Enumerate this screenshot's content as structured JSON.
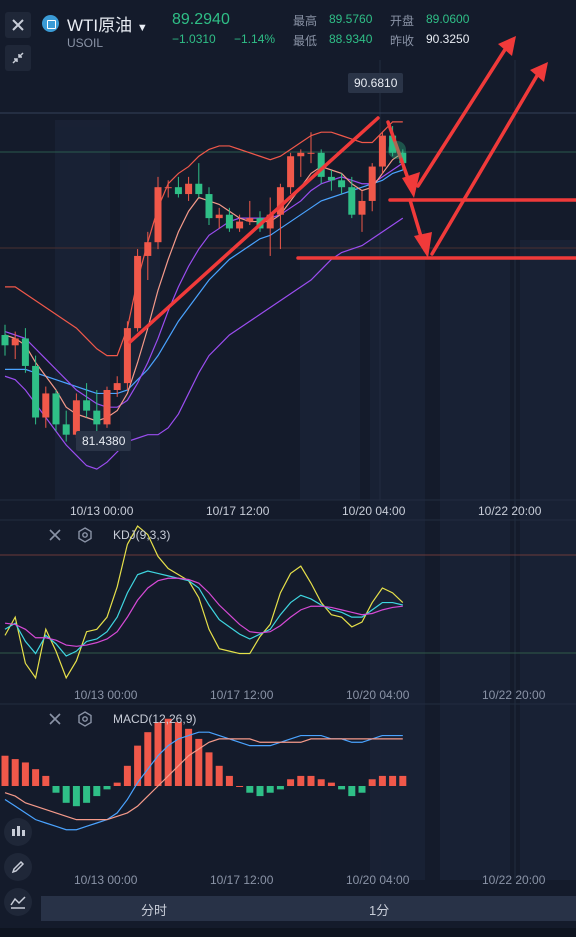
{
  "header": {
    "title": "WTI原油",
    "symbol": "USOIL",
    "price": "89.2940",
    "change": "−1.0310",
    "change_pct": "−1.14%",
    "stats": {
      "high_label": "最高",
      "high": "89.5760",
      "low_label": "最低",
      "low": "88.9340",
      "open_label": "开盘",
      "open": "89.0600",
      "prev_label": "昨收",
      "prev": "90.3250"
    }
  },
  "main": {
    "max_label": "90.6810",
    "min_label": "81.4380"
  },
  "xaxis": {
    "ticks": [
      "10/13 00:00",
      "10/17 12:00",
      "10/20 04:00",
      "10/22 20:00"
    ]
  },
  "kdj": {
    "label": "KDJ(9,3,3)"
  },
  "macd": {
    "label": "MACD(12,26,9)"
  },
  "bottom": {
    "tab1": "分时",
    "tab2": "1分"
  },
  "colors": {
    "up": "#f0584a",
    "down": "#2fbf87",
    "bg": "#141b2b",
    "ma_fast": "#f0584a",
    "ma_mid": "#e8ecf3",
    "ma_slow": "#4aa3ff",
    "boll": "#9b4df0",
    "k": "#e6e04a",
    "d": "#3fd6e0",
    "j": "#d64ad6"
  },
  "chart_data": {
    "type": "candlestick",
    "yrange": [
      79.8,
      92.6
    ],
    "candles": [
      {
        "o": 84.6,
        "h": 84.9,
        "l": 84.0,
        "c": 84.3
      },
      {
        "o": 84.3,
        "h": 84.7,
        "l": 83.9,
        "c": 84.5
      },
      {
        "o": 84.5,
        "h": 84.8,
        "l": 83.5,
        "c": 83.7
      },
      {
        "o": 83.7,
        "h": 84.0,
        "l": 82.0,
        "c": 82.2
      },
      {
        "o": 82.2,
        "h": 83.1,
        "l": 81.9,
        "c": 82.9
      },
      {
        "o": 82.9,
        "h": 83.0,
        "l": 81.8,
        "c": 82.0
      },
      {
        "o": 82.0,
        "h": 82.4,
        "l": 81.5,
        "c": 81.7
      },
      {
        "o": 81.7,
        "h": 82.9,
        "l": 81.6,
        "c": 82.7
      },
      {
        "o": 82.7,
        "h": 83.2,
        "l": 82.2,
        "c": 82.4
      },
      {
        "o": 82.4,
        "h": 83.0,
        "l": 81.4,
        "c": 82.0
      },
      {
        "o": 82.0,
        "h": 83.1,
        "l": 81.9,
        "c": 83.0
      },
      {
        "o": 83.0,
        "h": 83.4,
        "l": 82.8,
        "c": 83.2
      },
      {
        "o": 83.2,
        "h": 85.0,
        "l": 83.0,
        "c": 84.8
      },
      {
        "o": 84.8,
        "h": 87.1,
        "l": 84.7,
        "c": 86.9
      },
      {
        "o": 86.9,
        "h": 87.6,
        "l": 86.2,
        "c": 87.3
      },
      {
        "o": 87.3,
        "h": 89.2,
        "l": 87.1,
        "c": 88.9
      },
      {
        "o": 88.9,
        "h": 89.1,
        "l": 88.6,
        "c": 88.9
      },
      {
        "o": 88.9,
        "h": 89.2,
        "l": 88.6,
        "c": 88.7
      },
      {
        "o": 88.7,
        "h": 89.2,
        "l": 88.5,
        "c": 89.0
      },
      {
        "o": 89.0,
        "h": 89.6,
        "l": 88.6,
        "c": 88.7
      },
      {
        "o": 88.7,
        "h": 88.9,
        "l": 87.8,
        "c": 88.0
      },
      {
        "o": 88.0,
        "h": 88.3,
        "l": 87.7,
        "c": 88.1
      },
      {
        "o": 88.1,
        "h": 88.3,
        "l": 87.6,
        "c": 87.7
      },
      {
        "o": 87.7,
        "h": 88.1,
        "l": 87.6,
        "c": 87.9
      },
      {
        "o": 87.9,
        "h": 88.5,
        "l": 87.8,
        "c": 88.0
      },
      {
        "o": 88.0,
        "h": 88.2,
        "l": 87.6,
        "c": 87.7
      },
      {
        "o": 87.7,
        "h": 88.6,
        "l": 86.9,
        "c": 88.1
      },
      {
        "o": 88.1,
        "h": 89.0,
        "l": 87.1,
        "c": 88.9
      },
      {
        "o": 88.9,
        "h": 89.9,
        "l": 88.7,
        "c": 89.8
      },
      {
        "o": 89.8,
        "h": 90.0,
        "l": 89.2,
        "c": 89.9
      },
      {
        "o": 89.9,
        "h": 90.5,
        "l": 89.6,
        "c": 89.9
      },
      {
        "o": 89.9,
        "h": 90.0,
        "l": 89.0,
        "c": 89.2
      },
      {
        "o": 89.2,
        "h": 89.4,
        "l": 88.8,
        "c": 89.1
      },
      {
        "o": 89.1,
        "h": 89.3,
        "l": 88.7,
        "c": 88.9
      },
      {
        "o": 88.9,
        "h": 89.2,
        "l": 88.0,
        "c": 88.1
      },
      {
        "o": 88.1,
        "h": 88.8,
        "l": 87.6,
        "c": 88.5
      },
      {
        "o": 88.5,
        "h": 89.6,
        "l": 88.2,
        "c": 89.5
      },
      {
        "o": 89.5,
        "h": 90.5,
        "l": 89.3,
        "c": 90.4
      },
      {
        "o": 90.4,
        "h": 90.68,
        "l": 89.8,
        "c": 89.9
      },
      {
        "o": 89.9,
        "h": 90.0,
        "l": 89.4,
        "c": 89.6
      }
    ],
    "boll_upper": [
      86.0,
      86.0,
      85.8,
      85.6,
      85.4,
      85.2,
      85.0,
      84.8,
      84.5,
      84.2,
      84.0,
      84.0,
      84.8,
      86.2,
      87.3,
      88.3,
      89.0,
      89.3,
      89.5,
      89.8,
      90.0,
      90.1,
      90.1,
      90.0,
      89.9,
      89.8,
      89.7,
      89.8,
      90.0,
      90.2,
      90.4,
      90.5,
      90.5,
      90.4,
      90.3,
      90.2,
      90.2,
      90.5,
      90.8,
      90.8
    ],
    "boll_lower": [
      83.4,
      83.3,
      83.0,
      82.6,
      82.2,
      81.8,
      81.4,
      81.1,
      80.8,
      80.7,
      80.9,
      81.2,
      81.5,
      81.6,
      81.7,
      81.7,
      81.9,
      82.3,
      82.9,
      83.5,
      84.0,
      84.3,
      84.6,
      84.8,
      85.0,
      85.2,
      85.4,
      85.6,
      85.8,
      86.0,
      86.2,
      86.5,
      86.8,
      87.0,
      87.1,
      87.2,
      87.4,
      87.6,
      87.8,
      88.0
    ],
    "ma_fast": [
      84.6,
      84.5,
      84.3,
      83.8,
      83.4,
      83.0,
      82.5,
      82.3,
      82.2,
      82.1,
      82.2,
      82.4,
      82.9,
      83.8,
      84.8,
      85.9,
      86.8,
      87.6,
      88.2,
      88.6,
      88.5,
      88.4,
      88.2,
      88.0,
      87.9,
      87.9,
      87.9,
      88.1,
      88.5,
      88.9,
      89.3,
      89.5,
      89.4,
      89.3,
      89.0,
      88.8,
      88.9,
      89.3,
      89.7,
      89.9
    ],
    "ma_mid": [
      84.7,
      84.6,
      84.5,
      84.2,
      83.9,
      83.6,
      83.3,
      83.0,
      82.8,
      82.6,
      82.5,
      82.5,
      82.7,
      83.2,
      83.8,
      84.5,
      85.3,
      86.0,
      86.6,
      87.1,
      87.5,
      87.7,
      87.9,
      88.0,
      88.0,
      88.0,
      88.0,
      88.1,
      88.3,
      88.5,
      88.8,
      89.0,
      89.1,
      89.2,
      89.1,
      89.0,
      89.0,
      89.2,
      89.4,
      89.6
    ],
    "ma_slow": [
      83.6,
      83.6,
      83.6,
      83.5,
      83.4,
      83.3,
      83.2,
      83.1,
      83.0,
      82.9,
      82.9,
      82.9,
      83.0,
      83.3,
      83.6,
      84.0,
      84.5,
      85.0,
      85.4,
      85.8,
      86.2,
      86.5,
      86.8,
      87.0,
      87.2,
      87.4,
      87.5,
      87.7,
      87.9,
      88.1,
      88.3,
      88.5,
      88.6,
      88.7,
      88.8,
      88.9,
      89.0,
      89.1,
      89.3,
      89.4
    ],
    "kdj_k": [
      40,
      45,
      30,
      20,
      35,
      28,
      18,
      22,
      30,
      32,
      38,
      50,
      70,
      85,
      88,
      86,
      84,
      82,
      80,
      74,
      60,
      48,
      42,
      36,
      32,
      36,
      40,
      52,
      62,
      68,
      65,
      60,
      56,
      54,
      50,
      50,
      56,
      62,
      62,
      60
    ],
    "kdj_d": [
      45,
      44,
      40,
      33,
      33,
      31,
      27,
      26,
      27,
      29,
      32,
      38,
      50,
      64,
      74,
      80,
      82,
      82,
      81,
      78,
      70,
      60,
      52,
      44,
      38,
      37,
      38,
      43,
      50,
      56,
      59,
      59,
      58,
      56,
      54,
      52,
      53,
      56,
      58,
      59
    ],
    "kdj_j": [
      35,
      50,
      12,
      0,
      40,
      22,
      0,
      14,
      38,
      40,
      50,
      75,
      110,
      125,
      118,
      100,
      90,
      85,
      80,
      66,
      40,
      24,
      22,
      20,
      20,
      34,
      44,
      70,
      86,
      92,
      78,
      62,
      52,
      50,
      42,
      46,
      62,
      74,
      70,
      62
    ],
    "macd_hist": [
      0.9,
      0.8,
      0.7,
      0.5,
      0.3,
      -0.2,
      -0.5,
      -0.6,
      -0.5,
      -0.3,
      -0.1,
      0.1,
      0.6,
      1.2,
      1.6,
      1.9,
      2.0,
      1.9,
      1.7,
      1.4,
      1.0,
      0.6,
      0.3,
      0.0,
      -0.2,
      -0.3,
      -0.2,
      -0.1,
      0.2,
      0.3,
      0.3,
      0.2,
      0.1,
      -0.1,
      -0.3,
      -0.2,
      0.2,
      0.3,
      0.3,
      0.3
    ],
    "macd_dif": [
      -0.4,
      -0.6,
      -0.8,
      -1.0,
      -1.1,
      -1.2,
      -1.3,
      -1.3,
      -1.2,
      -1.1,
      -1.0,
      -0.8,
      -0.4,
      0.1,
      0.5,
      0.9,
      1.2,
      1.4,
      1.5,
      1.6,
      1.6,
      1.5,
      1.4,
      1.3,
      1.2,
      1.2,
      1.2,
      1.3,
      1.4,
      1.5,
      1.5,
      1.5,
      1.4,
      1.4,
      1.3,
      1.3,
      1.4,
      1.5,
      1.5,
      1.5
    ],
    "macd_dea": [
      -0.2,
      -0.3,
      -0.5,
      -0.6,
      -0.7,
      -0.8,
      -0.9,
      -1.0,
      -1.0,
      -1.0,
      -1.0,
      -0.9,
      -0.8,
      -0.6,
      -0.3,
      0.0,
      0.3,
      0.6,
      0.9,
      1.1,
      1.3,
      1.4,
      1.4,
      1.4,
      1.4,
      1.3,
      1.3,
      1.3,
      1.3,
      1.3,
      1.4,
      1.4,
      1.4,
      1.4,
      1.4,
      1.4,
      1.4,
      1.4,
      1.4,
      1.4
    ]
  }
}
